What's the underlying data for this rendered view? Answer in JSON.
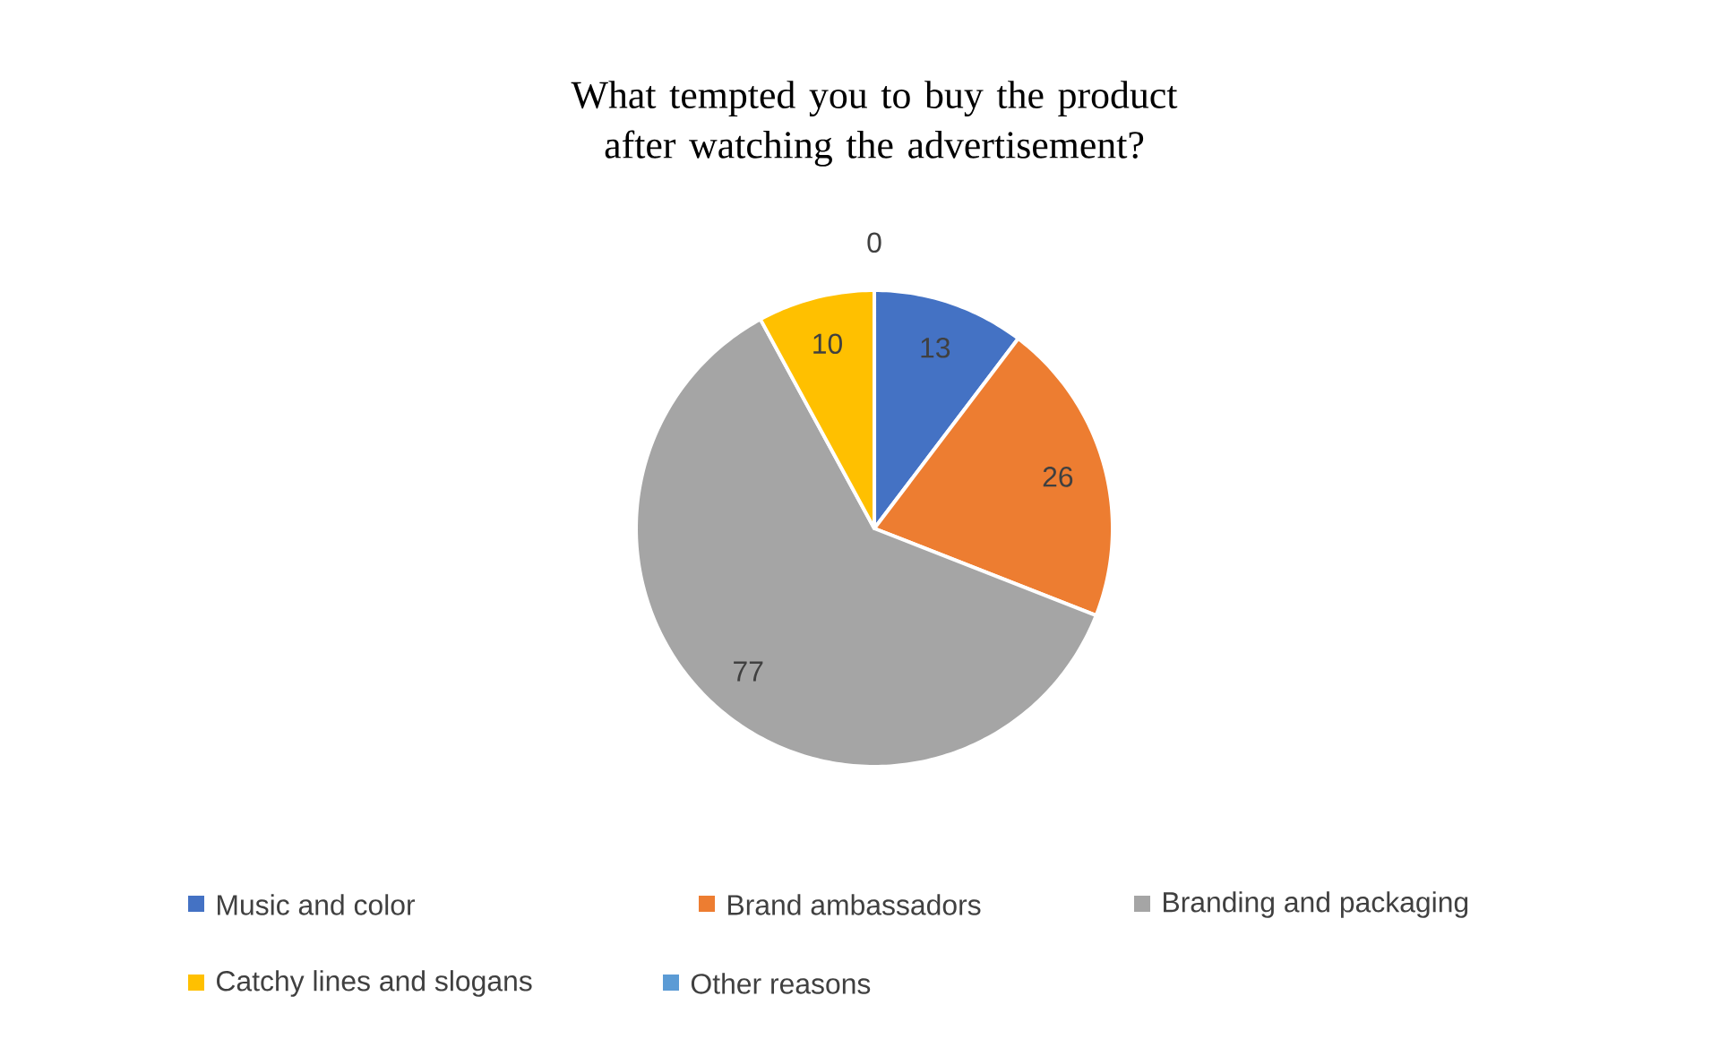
{
  "chart_data": {
    "type": "pie",
    "title": "What tempted you to buy the product after watching the advertisement?",
    "categories": [
      "Music and color",
      "Brand ambassadors",
      "Branding and packaging",
      "Catchy lines and slogans",
      "Other reasons"
    ],
    "values": [
      13,
      26,
      77,
      10,
      0
    ],
    "colors": [
      "#4472c4",
      "#ed7d31",
      "#a5a5a5",
      "#ffc000",
      "#5b9bd5"
    ],
    "value_labels": [
      "13",
      "26",
      "77",
      "10",
      "0"
    ],
    "legend": "bottom"
  }
}
